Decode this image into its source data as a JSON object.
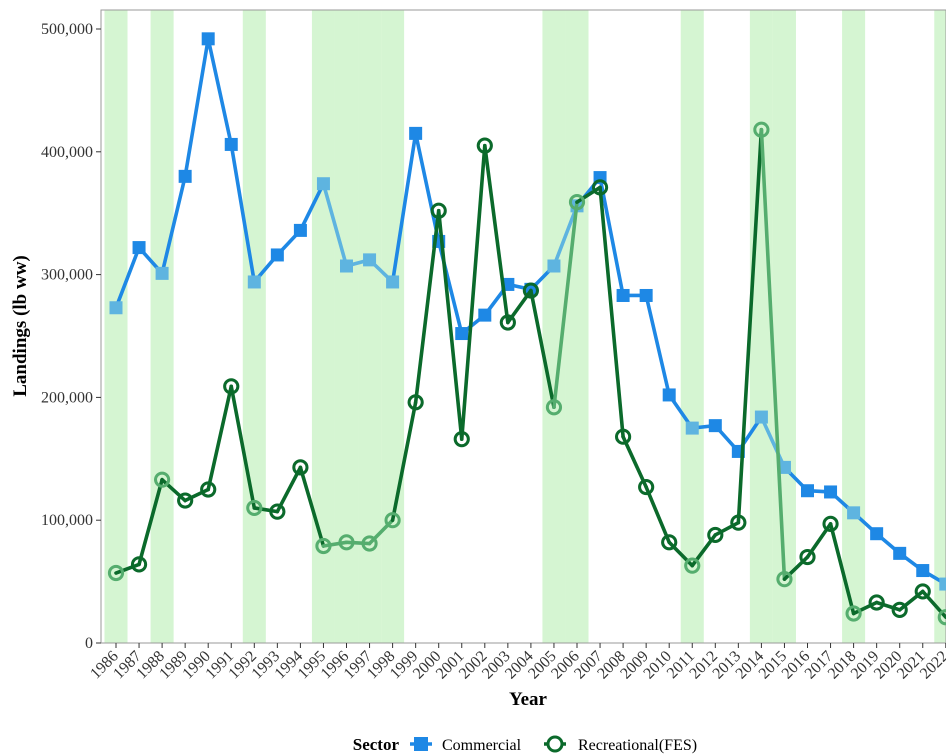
{
  "chart_data": {
    "type": "line",
    "xlabel": "Year",
    "ylabel": "Landings (lb ww)",
    "ylim": [
      0,
      500000
    ],
    "yticks": [
      0,
      100000,
      200000,
      300000,
      400000,
      500000
    ],
    "ytick_labels": [
      "0",
      "100,000",
      "200,000",
      "300,000",
      "400,000",
      "500,000"
    ],
    "x": [
      "1986",
      "1987",
      "1988",
      "1989",
      "1990",
      "1991",
      "1992",
      "1993",
      "1994",
      "1995",
      "1996",
      "1997",
      "1998",
      "1999",
      "2000",
      "2001",
      "2002",
      "2003",
      "2004",
      "2005",
      "2006",
      "2007",
      "2008",
      "2009",
      "2010",
      "2011",
      "2012",
      "2013",
      "2014",
      "2015",
      "2016",
      "2017",
      "2018",
      "2019",
      "2020",
      "2021",
      "2022"
    ],
    "shaded_years": [
      "1986",
      "1988",
      "1992",
      "1995",
      "1996",
      "1997",
      "1998",
      "2005",
      "2006",
      "2011",
      "2014",
      "2015",
      "2018",
      "2022"
    ],
    "series": [
      {
        "name": "Commercial",
        "marker": "square",
        "color_dark": "#1e88e5",
        "color_light": "#5eb4e0",
        "values": [
          273000,
          322000,
          301000,
          380000,
          492000,
          406000,
          294000,
          316000,
          336000,
          374000,
          307000,
          312000,
          294000,
          415000,
          327000,
          252000,
          267000,
          292000,
          288000,
          307000,
          356000,
          379000,
          283000,
          283000,
          202000,
          175000,
          177000,
          156000,
          184000,
          143000,
          124000,
          123000,
          106000,
          89000,
          73000,
          59000,
          48000
        ]
      },
      {
        "name": "Recreational(FES)",
        "marker": "circle",
        "color_dark": "#0b6a2b",
        "color_light": "#55ad6e",
        "values": [
          57000,
          64000,
          133000,
          116000,
          125000,
          209000,
          110000,
          107000,
          143000,
          79000,
          82000,
          81000,
          100000,
          196000,
          352000,
          166000,
          405000,
          261000,
          287000,
          192000,
          359000,
          371000,
          168000,
          127000,
          82000,
          63000,
          88000,
          98000,
          418000,
          52000,
          70000,
          97000,
          24000,
          33000,
          27000,
          42000,
          21000
        ]
      }
    ],
    "legend": {
      "title": "Sector",
      "position": "bottom"
    },
    "grid": false,
    "shade_color": "#d5f5d2"
  }
}
